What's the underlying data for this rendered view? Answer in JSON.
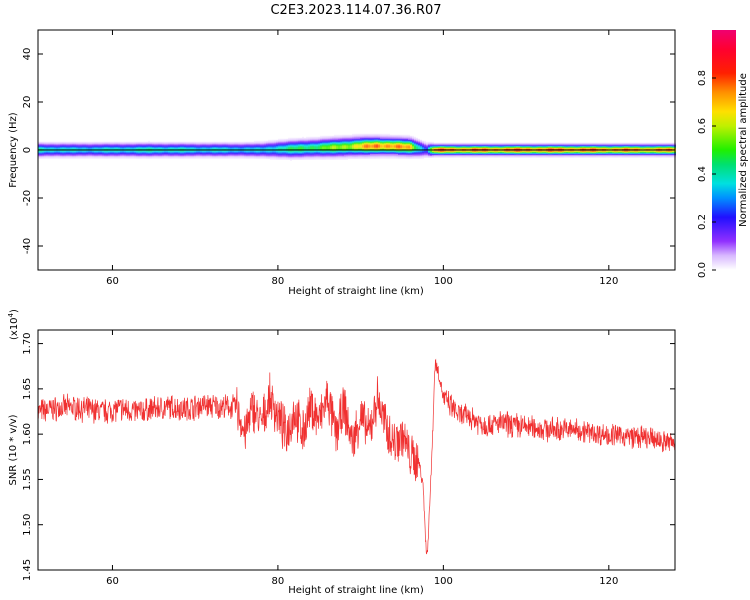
{
  "title": "C2E3.2023.114.07.36.R07",
  "chart_data": [
    {
      "type": "heatmap",
      "xlabel": "Height of straight line (km)",
      "ylabel": "Frequency (Hz)",
      "xlim": [
        51,
        128
      ],
      "ylim": [
        -50,
        50
      ],
      "x_ticks": [
        60,
        80,
        100,
        120
      ],
      "y_ticks": [
        -40,
        -20,
        0,
        20,
        40
      ],
      "x_tick_labels": [
        "60",
        "80",
        "100",
        "120"
      ],
      "y_tick_labels": [
        "-40",
        "-20",
        "0",
        "20",
        "40"
      ],
      "colorbar": {
        "label": "Normalized spectral amplitude",
        "range": [
          0,
          1
        ],
        "ticks": [
          0.0,
          0.2,
          0.4,
          0.6,
          0.8
        ],
        "tick_labels": [
          "0.0",
          "0.2",
          "0.4",
          "0.6",
          "0.8"
        ]
      },
      "band_profile": {
        "x": [
          51,
          55,
          60,
          65,
          70,
          75,
          78,
          80,
          82,
          85,
          88,
          90,
          92,
          94,
          96,
          97,
          98,
          99,
          100,
          105,
          110,
          115,
          120,
          125,
          128
        ],
        "peak_amplitude": [
          0.45,
          0.4,
          0.42,
          0.45,
          0.42,
          0.4,
          0.38,
          0.45,
          0.5,
          0.55,
          0.65,
          0.75,
          0.85,
          0.85,
          0.75,
          0.45,
          0.3,
          0.9,
          0.88,
          0.88,
          0.9,
          0.9,
          0.88,
          0.85,
          0.85
        ],
        "half_width_hz": [
          2.5,
          2.5,
          2.5,
          2.5,
          2.5,
          2.5,
          2.6,
          3.0,
          3.2,
          3.3,
          3.4,
          3.4,
          3.3,
          3.2,
          3.2,
          3.0,
          2.5,
          2.0,
          2.0,
          2.0,
          2.0,
          2.0,
          2.0,
          2.0,
          2.0
        ],
        "center_hz": [
          0,
          0,
          0,
          0,
          0,
          0,
          0,
          0.2,
          0.4,
          0.8,
          1.2,
          1.5,
          1.6,
          1.5,
          1.2,
          0.6,
          0,
          0,
          0,
          0,
          0,
          0,
          0,
          0,
          0
        ]
      }
    },
    {
      "type": "line",
      "xlabel": "Height of straight line (km)",
      "ylabel": "SNR (10 * v/v)",
      "y_multiplier": "(x10",
      "y_multiplier_exp": "4",
      "y_multiplier_close": ")",
      "xlim": [
        51,
        128
      ],
      "ylim": [
        1.45,
        1.715
      ],
      "x_ticks": [
        60,
        80,
        100,
        120
      ],
      "y_ticks": [
        1.45,
        1.5,
        1.55,
        1.6,
        1.65,
        1.7
      ],
      "x_tick_labels": [
        "60",
        "80",
        "100",
        "120"
      ],
      "y_tick_labels": [
        "1.45",
        "1.50",
        "1.55",
        "1.60",
        "1.65",
        "1.70"
      ],
      "color": "#f03030",
      "series": [
        {
          "x": [
            51,
            53,
            55,
            57,
            59,
            61,
            63,
            65,
            67,
            69,
            71,
            73,
            75,
            76,
            77,
            78,
            79,
            80,
            81,
            82,
            83,
            84,
            85,
            86,
            87,
            88,
            89,
            90,
            91,
            92,
            93,
            94,
            95,
            96,
            97,
            97.5,
            98,
            98.5,
            99,
            99.5,
            100,
            101,
            102,
            103,
            105,
            107,
            110,
            113,
            116,
            119,
            122,
            125,
            128
          ],
          "values": [
            1.625,
            1.628,
            1.63,
            1.627,
            1.625,
            1.628,
            1.625,
            1.628,
            1.63,
            1.628,
            1.632,
            1.63,
            1.63,
            1.6,
            1.63,
            1.61,
            1.64,
            1.62,
            1.6,
            1.625,
            1.6,
            1.63,
            1.615,
            1.64,
            1.6,
            1.63,
            1.59,
            1.62,
            1.6,
            1.64,
            1.61,
            1.59,
            1.6,
            1.575,
            1.57,
            1.55,
            1.46,
            1.55,
            1.68,
            1.665,
            1.64,
            1.63,
            1.62,
            1.62,
            1.61,
            1.612,
            1.608,
            1.605,
            1.605,
            1.6,
            1.598,
            1.595,
            1.59
          ]
        }
      ]
    }
  ]
}
